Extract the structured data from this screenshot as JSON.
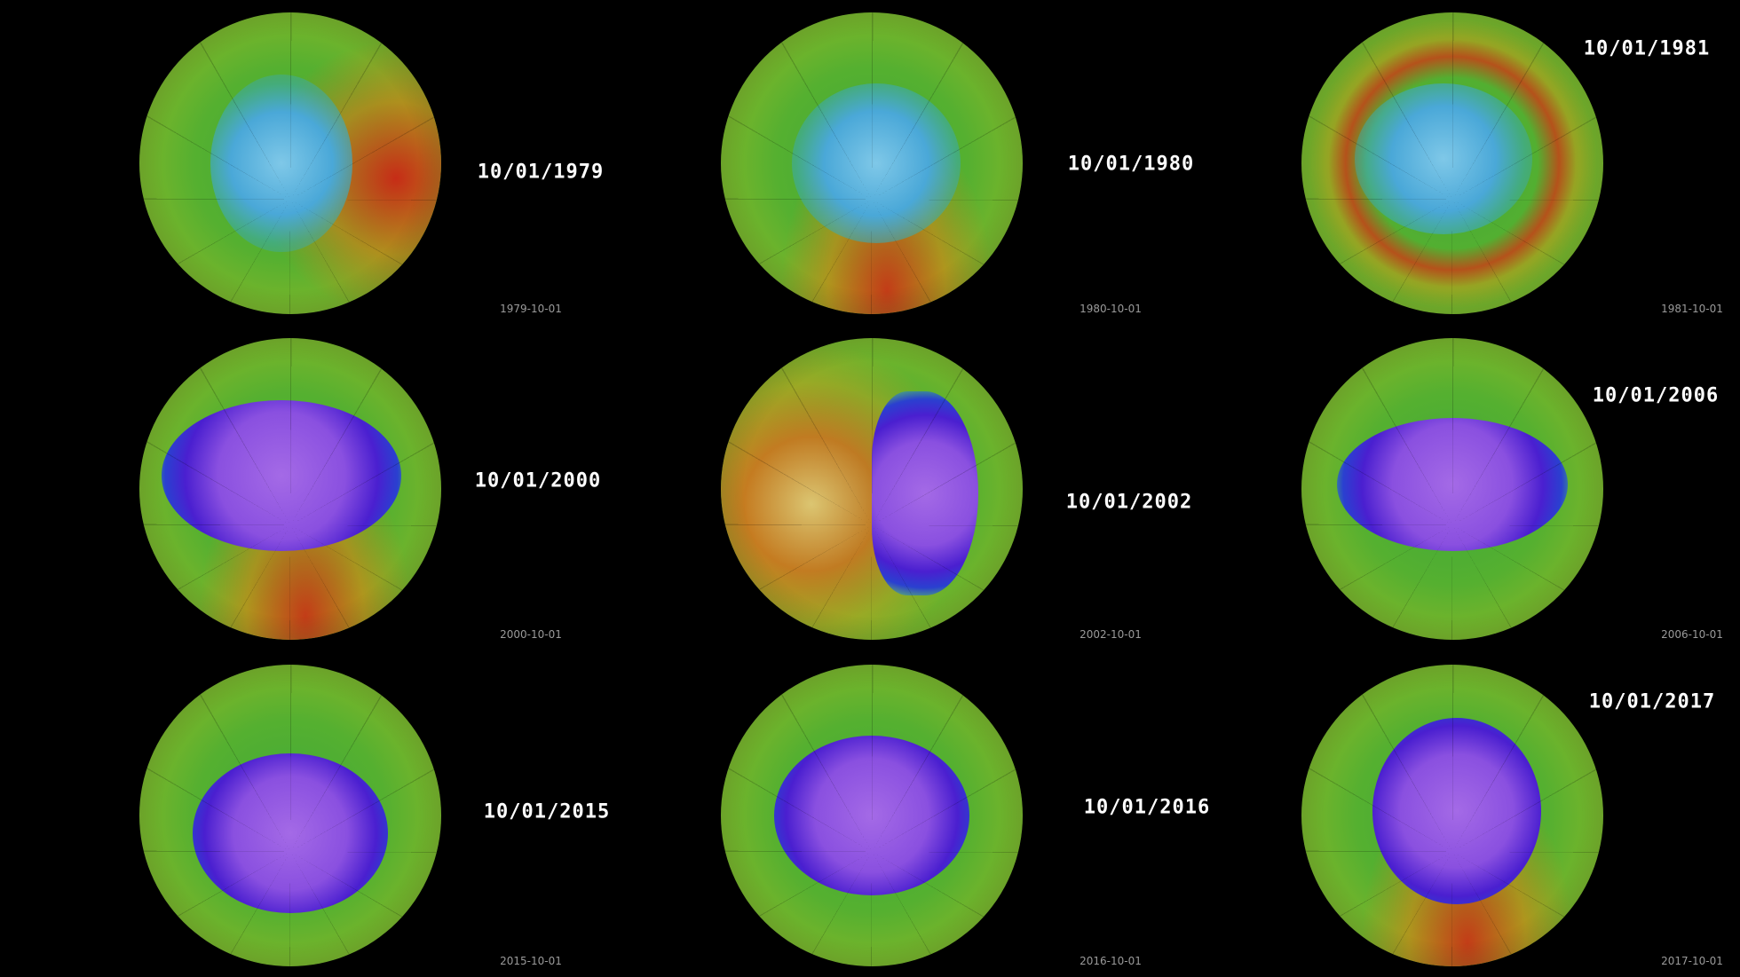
{
  "panels": [
    {
      "title": "10/01/1979",
      "date": "1979-10-01"
    },
    {
      "title": "10/01/1980",
      "date": "1980-10-01"
    },
    {
      "title": "10/01/1981",
      "date": "1981-10-01"
    },
    {
      "title": "10/01/2000",
      "date": "2000-10-01"
    },
    {
      "title": "10/01/2002",
      "date": "2002-10-01"
    },
    {
      "title": "10/01/2006",
      "date": "2006-10-01"
    },
    {
      "title": "10/01/2015",
      "date": "2015-10-01"
    },
    {
      "title": "10/01/2016",
      "date": "2016-10-01"
    },
    {
      "title": "10/01/2017",
      "date": "2017-10-01"
    }
  ],
  "colors": {
    "background": "#000000",
    "title": "#ffffff",
    "date": "#9a9a9a",
    "hole_deep": "#4a1fd0",
    "hole_core": "#9a5ee0",
    "hole_mild": "#5ab8e0",
    "high_ozone": "#d0201a"
  }
}
